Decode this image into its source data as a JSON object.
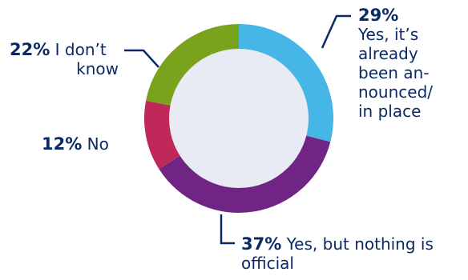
{
  "chart_data": {
    "type": "pie",
    "title": "",
    "series": [
      {
        "name": "Yes, it’s already been announced/in place",
        "value": 29,
        "label": "29%",
        "color": "#45b6e6"
      },
      {
        "name": "Yes, but nothing is official",
        "value": 37,
        "label": "37%",
        "color": "#702585"
      },
      {
        "name": "No",
        "value": 12,
        "label": "12%",
        "color": "#c1285a"
      },
      {
        "name": "I don’t know",
        "value": 22,
        "label": "22%",
        "color": "#7aa31d"
      }
    ],
    "center_color": "#e8ebf3",
    "text_color": "#0a2a66"
  },
  "labels": {
    "yes_announced": {
      "pct": "29%",
      "lines": [
        "Yes, it’s",
        "already",
        "been an-",
        "nounced/",
        "in place"
      ]
    },
    "yes_not_official": {
      "pct": "37%",
      "lines": [
        "Yes, but nothing is",
        "official"
      ]
    },
    "no": {
      "pct": "12%",
      "text": "No"
    },
    "dont_know": {
      "pct": "22%",
      "lines": [
        "I don’t",
        "know"
      ]
    }
  }
}
